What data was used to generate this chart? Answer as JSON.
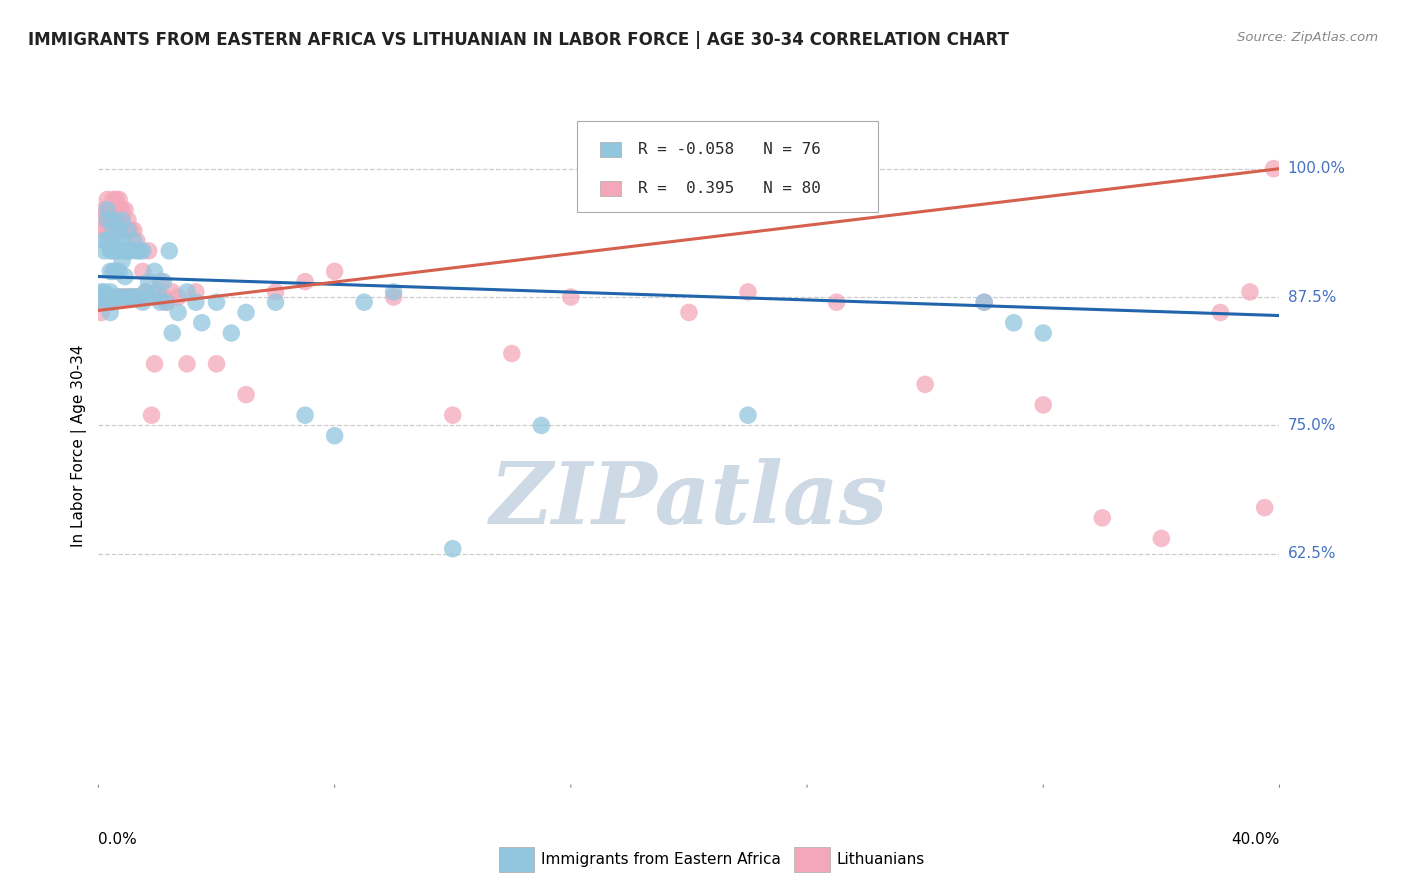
{
  "title": "IMMIGRANTS FROM EASTERN AFRICA VS LITHUANIAN IN LABOR FORCE | AGE 30-34 CORRELATION CHART",
  "source": "Source: ZipAtlas.com",
  "ylabel": "In Labor Force | Age 30-34",
  "xmin": 0.0,
  "xmax": 0.4,
  "ymin": 0.4,
  "ymax": 1.06,
  "blue_R": -0.058,
  "blue_N": 76,
  "pink_R": 0.395,
  "pink_N": 80,
  "blue_color": "#92c5de",
  "pink_color": "#f4a7b9",
  "blue_line_color": "#2166ac",
  "pink_line_color": "#d6604d",
  "legend_label_blue": "Immigrants from Eastern Africa",
  "legend_label_pink": "Lithuanians",
  "ytick_vals": [
    0.625,
    0.75,
    0.875,
    1.0
  ],
  "ytick_labels": [
    "62.5%",
    "75.0%",
    "87.5%",
    "100.0%"
  ],
  "watermark_text": "ZIPatlas",
  "watermark_color": "#cdd9e5",
  "blue_scatter_x": [
    0.001,
    0.001,
    0.002,
    0.002,
    0.002,
    0.002,
    0.003,
    0.003,
    0.003,
    0.003,
    0.004,
    0.004,
    0.004,
    0.004,
    0.004,
    0.005,
    0.005,
    0.005,
    0.005,
    0.005,
    0.006,
    0.006,
    0.006,
    0.006,
    0.007,
    0.007,
    0.007,
    0.007,
    0.008,
    0.008,
    0.008,
    0.008,
    0.009,
    0.009,
    0.01,
    0.01,
    0.01,
    0.011,
    0.011,
    0.012,
    0.012,
    0.013,
    0.013,
    0.014,
    0.014,
    0.015,
    0.015,
    0.016,
    0.017,
    0.018,
    0.019,
    0.02,
    0.021,
    0.022,
    0.023,
    0.024,
    0.025,
    0.027,
    0.03,
    0.033,
    0.035,
    0.04,
    0.045,
    0.05,
    0.06,
    0.07,
    0.08,
    0.09,
    0.1,
    0.12,
    0.15,
    0.2,
    0.22,
    0.3,
    0.31,
    0.32
  ],
  "blue_scatter_y": [
    0.875,
    0.88,
    0.93,
    0.92,
    0.88,
    0.87,
    0.96,
    0.95,
    0.93,
    0.875,
    0.92,
    0.9,
    0.88,
    0.87,
    0.86,
    0.95,
    0.94,
    0.92,
    0.9,
    0.875,
    0.93,
    0.92,
    0.9,
    0.875,
    0.94,
    0.92,
    0.9,
    0.875,
    0.95,
    0.93,
    0.91,
    0.875,
    0.92,
    0.895,
    0.94,
    0.92,
    0.875,
    0.92,
    0.875,
    0.93,
    0.875,
    0.92,
    0.875,
    0.92,
    0.875,
    0.92,
    0.87,
    0.88,
    0.89,
    0.875,
    0.9,
    0.88,
    0.87,
    0.89,
    0.87,
    0.92,
    0.84,
    0.86,
    0.88,
    0.87,
    0.85,
    0.87,
    0.84,
    0.86,
    0.87,
    0.76,
    0.74,
    0.87,
    0.88,
    0.63,
    0.75,
    1.0,
    0.76,
    0.87,
    0.85,
    0.84
  ],
  "pink_scatter_x": [
    0.001,
    0.001,
    0.001,
    0.002,
    0.002,
    0.002,
    0.002,
    0.003,
    0.003,
    0.003,
    0.003,
    0.003,
    0.004,
    0.004,
    0.004,
    0.004,
    0.005,
    0.005,
    0.005,
    0.005,
    0.005,
    0.006,
    0.006,
    0.006,
    0.006,
    0.007,
    0.007,
    0.007,
    0.007,
    0.008,
    0.008,
    0.008,
    0.008,
    0.009,
    0.009,
    0.009,
    0.01,
    0.01,
    0.01,
    0.011,
    0.011,
    0.012,
    0.012,
    0.013,
    0.013,
    0.014,
    0.015,
    0.016,
    0.017,
    0.018,
    0.019,
    0.02,
    0.021,
    0.022,
    0.023,
    0.025,
    0.027,
    0.03,
    0.033,
    0.04,
    0.05,
    0.06,
    0.07,
    0.08,
    0.1,
    0.12,
    0.14,
    0.16,
    0.2,
    0.22,
    0.25,
    0.28,
    0.3,
    0.32,
    0.34,
    0.36,
    0.38,
    0.39,
    0.395,
    0.398
  ],
  "pink_scatter_y": [
    0.875,
    0.87,
    0.86,
    0.96,
    0.95,
    0.94,
    0.87,
    0.97,
    0.96,
    0.95,
    0.94,
    0.87,
    0.96,
    0.95,
    0.94,
    0.87,
    0.97,
    0.96,
    0.95,
    0.94,
    0.87,
    0.97,
    0.96,
    0.95,
    0.875,
    0.97,
    0.96,
    0.94,
    0.875,
    0.96,
    0.95,
    0.94,
    0.875,
    0.96,
    0.94,
    0.875,
    0.95,
    0.94,
    0.875,
    0.94,
    0.875,
    0.94,
    0.875,
    0.93,
    0.875,
    0.875,
    0.9,
    0.88,
    0.92,
    0.76,
    0.81,
    0.875,
    0.89,
    0.875,
    0.87,
    0.88,
    0.875,
    0.81,
    0.88,
    0.81,
    0.78,
    0.88,
    0.89,
    0.9,
    0.875,
    0.76,
    0.82,
    0.875,
    0.86,
    0.88,
    0.87,
    0.79,
    0.87,
    0.77,
    0.66,
    0.64,
    0.86,
    0.88,
    0.67,
    1.0
  ]
}
